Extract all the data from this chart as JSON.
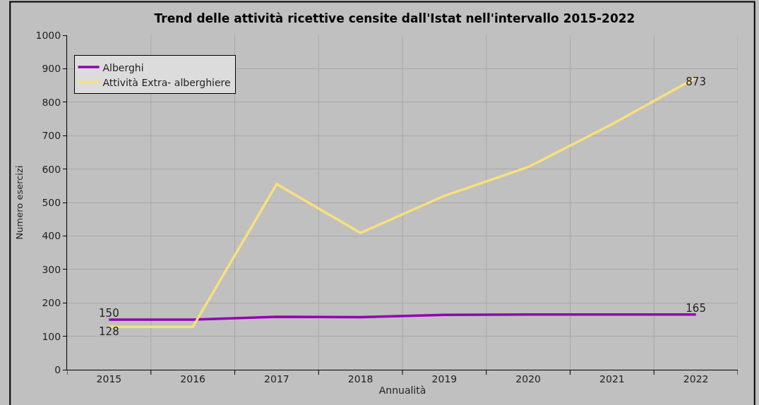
{
  "chart_data": {
    "type": "line",
    "title": "Trend delle attività ricettive censite dall'Istat nell'intervallo 2015-2022",
    "xlabel": "Annualità",
    "ylabel": "Numero esercizi",
    "categories": [
      "2015",
      "2016",
      "2017",
      "2018",
      "2019",
      "2020",
      "2021",
      "2022"
    ],
    "series": [
      {
        "name": "Alberghi",
        "color": "#9400b4",
        "values": [
          150,
          150,
          158,
          157,
          164,
          165,
          165,
          165
        ],
        "value_labels": [
          "150",
          null,
          null,
          null,
          null,
          null,
          null,
          "165"
        ]
      },
      {
        "name": "Attività Extra- alberghiere",
        "color": "#f8e07c",
        "values": [
          128,
          128,
          555,
          409,
          520,
          606,
          734,
          873
        ],
        "value_labels": [
          "128",
          null,
          null,
          null,
          null,
          null,
          null,
          "873"
        ]
      }
    ],
    "ylim": [
      0,
      1000
    ],
    "yticks": [
      0,
      100,
      200,
      300,
      400,
      500,
      600,
      700,
      800,
      900,
      1000
    ],
    "grid": true,
    "legend": "top left",
    "marker": "none",
    "line_style": "solid"
  }
}
